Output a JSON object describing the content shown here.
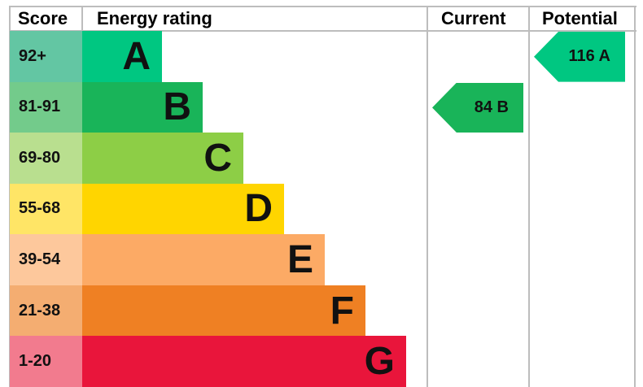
{
  "chart_data": {
    "type": "bar",
    "headers": {
      "score": "Score",
      "rating": "Energy rating",
      "current": "Current",
      "potential": "Potential"
    },
    "bands": [
      {
        "letter": "A",
        "range": "92+",
        "color": "#00c781",
        "score_color": "#63c6a3"
      },
      {
        "letter": "B",
        "range": "81-91",
        "color": "#19b459",
        "score_color": "#73cb8b"
      },
      {
        "letter": "C",
        "range": "69-80",
        "color": "#8dce46",
        "score_color": "#b9df8f"
      },
      {
        "letter": "D",
        "range": "55-68",
        "color": "#ffd500",
        "score_color": "#ffe566"
      },
      {
        "letter": "E",
        "range": "39-54",
        "color": "#fcaa65",
        "score_color": "#fdc89c"
      },
      {
        "letter": "F",
        "range": "21-38",
        "color": "#ef8023",
        "score_color": "#f4ad71"
      },
      {
        "letter": "G",
        "range": "1-20",
        "color": "#e9153b",
        "score_color": "#f27b8e"
      }
    ],
    "current": {
      "value": 84,
      "band": "B",
      "label": "84  B",
      "color": "#19b459"
    },
    "potential": {
      "value": 116,
      "band": "A",
      "label": "116  A",
      "color": "#00c781"
    }
  }
}
